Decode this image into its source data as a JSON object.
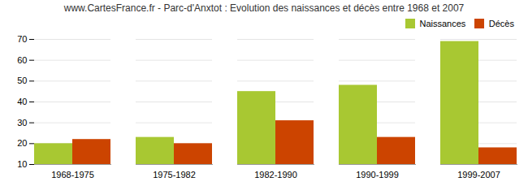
{
  "chart_data": {
    "type": "bar",
    "title": "www.CartesFrance.fr - Parc-d'Anxtot : Evolution des naissances et décès entre 1968 et 2007",
    "categories": [
      "1968-1975",
      "1975-1982",
      "1982-1990",
      "1990-1999",
      "1999-2007"
    ],
    "series": [
      {
        "name": "Naissances",
        "color": "#a8c832",
        "values": [
          20,
          23,
          45,
          48,
          69
        ]
      },
      {
        "name": "Décès",
        "color": "#cc4400",
        "values": [
          22,
          20,
          31,
          23,
          18
        ]
      }
    ],
    "ylim": [
      10,
      70
    ],
    "yticks": [
      10,
      20,
      30,
      40,
      50,
      60,
      70
    ],
    "grid": true,
    "legend": "upper right"
  }
}
